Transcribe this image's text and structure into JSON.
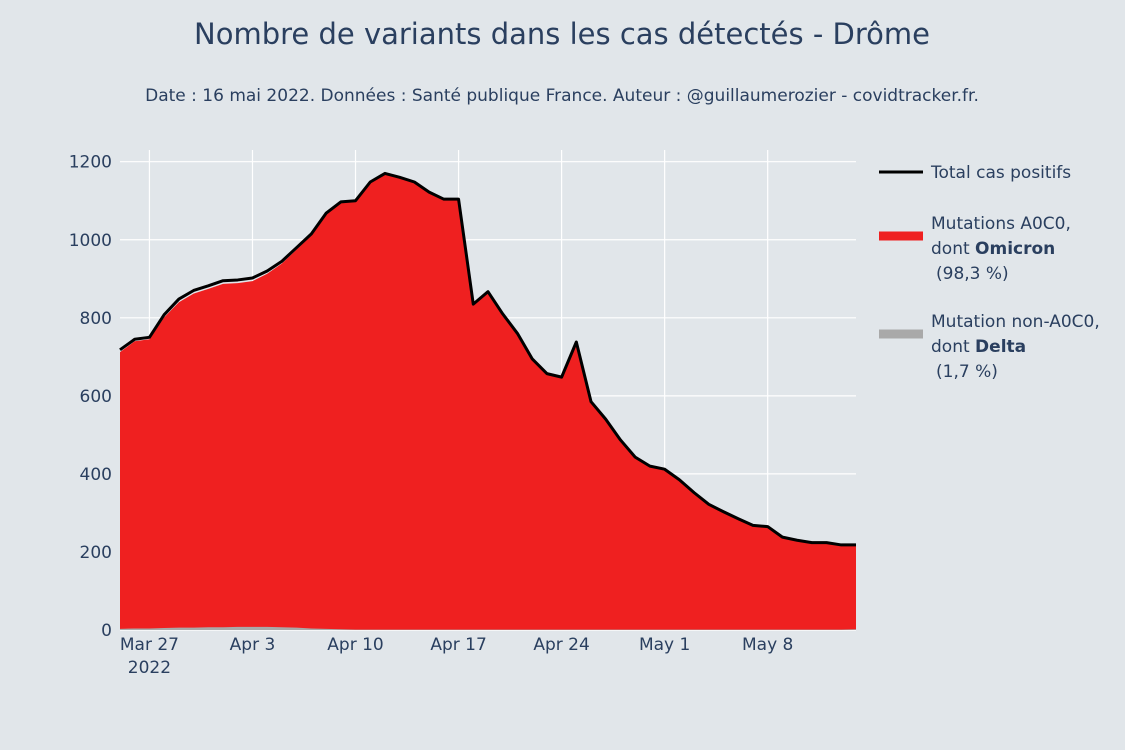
{
  "chart_data": {
    "type": "area",
    "title": "Nombre de variants dans les cas détectés - Drôme",
    "subtitle": "Date : 16 mai 2022. Données : Santé publique France. Auteur : @guillaumerozier - covidtracker.fr.",
    "x_start": "2022-03-25",
    "x": [
      "2022-03-25",
      "2022-03-26",
      "2022-03-27",
      "2022-03-28",
      "2022-03-29",
      "2022-03-30",
      "2022-03-31",
      "2022-04-01",
      "2022-04-02",
      "2022-04-03",
      "2022-04-04",
      "2022-04-05",
      "2022-04-06",
      "2022-04-07",
      "2022-04-08",
      "2022-04-09",
      "2022-04-10",
      "2022-04-11",
      "2022-04-12",
      "2022-04-13",
      "2022-04-14",
      "2022-04-15",
      "2022-04-16",
      "2022-04-17",
      "2022-04-18",
      "2022-04-19",
      "2022-04-20",
      "2022-04-21",
      "2022-04-22",
      "2022-04-23",
      "2022-04-24",
      "2022-04-25",
      "2022-04-26",
      "2022-04-27",
      "2022-04-28",
      "2022-04-29",
      "2022-04-30",
      "2022-05-01",
      "2022-05-02",
      "2022-05-03",
      "2022-05-04",
      "2022-05-05",
      "2022-05-06",
      "2022-05-07",
      "2022-05-08",
      "2022-05-09",
      "2022-05-10",
      "2022-05-11",
      "2022-05-12",
      "2022-05-13",
      "2022-05-14"
    ],
    "series": [
      {
        "name": "Total cas positifs",
        "color": "#000000",
        "values": [
          718,
          745,
          750,
          808,
          848,
          870,
          882,
          895,
          897,
          902,
          920,
          945,
          980,
          1015,
          1068,
          1097,
          1100,
          1148,
          1170,
          1160,
          1148,
          1122,
          1104,
          1104,
          835,
          867,
          810,
          760,
          695,
          657,
          648,
          738,
          585,
          540,
          487,
          443,
          420,
          412,
          385,
          352,
          322,
          303,
          285,
          268,
          265,
          238,
          230,
          224,
          224,
          218,
          218
        ]
      },
      {
        "name": "Mutations A0C0, dont Omicron (98,3 %)",
        "legend_lines": [
          "Mutations A0C0,",
          "dont ",
          "Omicron",
          "(98,3 %)"
        ],
        "color": "#ef2020",
        "values": [
          712,
          740,
          745,
          801,
          840,
          862,
          874,
          887,
          889,
          894,
          913,
          939,
          975,
          1011,
          1065,
          1095,
          1098,
          1146,
          1168,
          1158,
          1146,
          1120,
          1102,
          1102,
          833,
          865,
          808,
          758,
          693,
          655,
          646,
          736,
          583,
          538,
          485,
          441,
          418,
          410,
          383,
          350,
          320,
          301,
          283,
          266,
          263,
          236,
          228,
          222,
          222,
          216,
          216
        ]
      },
      {
        "name": "Mutation non-A0C0, dont Delta (1,7 %)",
        "legend_lines": [
          "Mutation non-A0C0,",
          "dont ",
          "Delta",
          "(1,7 %)"
        ],
        "color": "#a9a9a9",
        "values": [
          3,
          4,
          4,
          5,
          6,
          6,
          7,
          7,
          8,
          8,
          8,
          7,
          6,
          4,
          3,
          2,
          1,
          1,
          1,
          1,
          1,
          1,
          1,
          1,
          1,
          1,
          1,
          1,
          1,
          1,
          1,
          1,
          1,
          1,
          1,
          1,
          1,
          1,
          1,
          1,
          1,
          1,
          1,
          1,
          1,
          1,
          1,
          1,
          1,
          1,
          2
        ]
      }
    ],
    "x_ticks": [
      {
        "date": "2022-03-27",
        "label": "Mar 27",
        "sublabel": "2022"
      },
      {
        "date": "2022-04-03",
        "label": "Apr 3"
      },
      {
        "date": "2022-04-10",
        "label": "Apr 10"
      },
      {
        "date": "2022-04-17",
        "label": "Apr 17"
      },
      {
        "date": "2022-04-24",
        "label": "Apr 24"
      },
      {
        "date": "2022-05-01",
        "label": "May 1"
      },
      {
        "date": "2022-05-08",
        "label": "May 8"
      }
    ],
    "y_ticks": [
      0,
      200,
      400,
      600,
      800,
      1000,
      1200
    ],
    "ylim": [
      0,
      1230
    ],
    "grid": true,
    "legend_position": "right"
  }
}
